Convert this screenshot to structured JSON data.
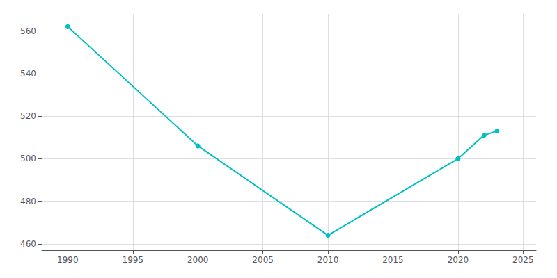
{
  "chart_data": {
    "type": "line",
    "x": [
      1990,
      2000,
      2010,
      2020,
      2022,
      2023
    ],
    "values": [
      562,
      506,
      464,
      500,
      511,
      513
    ],
    "color": "#00BFBF",
    "marker": "circle",
    "xlim": [
      1988,
      2026
    ],
    "ylim": [
      457,
      568
    ],
    "xticks": [
      1990,
      1995,
      2000,
      2005,
      2010,
      2015,
      2020,
      2025
    ],
    "yticks": [
      460,
      480,
      500,
      520,
      540,
      560
    ],
    "grid": true
  }
}
